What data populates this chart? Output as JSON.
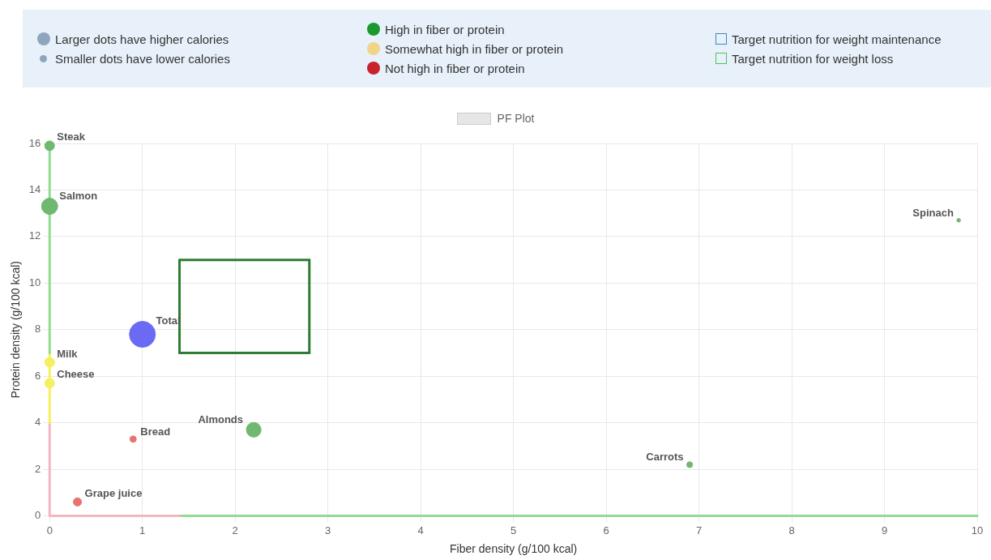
{
  "chart_data": {
    "type": "bubble",
    "xlabel": "Fiber density (g/100 kcal)",
    "ylabel": "Protein density (g/100 kcal)",
    "xlim": [
      0,
      10
    ],
    "ylim": [
      0,
      16
    ],
    "xticks": [
      0,
      1,
      2,
      3,
      4,
      5,
      6,
      7,
      8,
      9,
      10
    ],
    "yticks": [
      0,
      2,
      4,
      6,
      8,
      10,
      12,
      14,
      16
    ],
    "grid": true,
    "legend": "top",
    "series": [
      {
        "name": "PF Plot",
        "color": "#e6e6e6",
        "x": [
          0,
          0,
          0,
          0,
          1,
          0.9,
          0.3,
          2.2,
          6.9,
          9.8
        ],
        "values": [
          15.9,
          13.3,
          6.6,
          5.7,
          7.8,
          3.3,
          0.6,
          3.7,
          2.2,
          12.7
        ],
        "sizes": [
          0.14,
          0.39,
          0.14,
          0.14,
          1,
          0.06,
          0.1,
          0.32,
          0.05,
          0.02
        ],
        "colors": [
          "#6fb86f",
          "#6fb86f",
          "#f5f060",
          "#f5f060",
          "#6a6af5",
          "#e87373",
          "#e87373",
          "#6fb86f",
          "#6fb86f",
          "#6fb86f"
        ]
      },
      {
        "type": "line",
        "color": "#90dc90",
        "x": [
          0,
          0
        ],
        "values": [
          7,
          16
        ]
      },
      {
        "type": "line",
        "color": "#f5f05a",
        "x": [
          0,
          0
        ],
        "values": [
          4,
          7
        ]
      },
      {
        "type": "line",
        "color": "#f4b6c2",
        "x": [
          0,
          0
        ],
        "values": [
          0,
          4
        ]
      },
      {
        "type": "line",
        "color": "#f4b6c2",
        "x": [
          0,
          1.4
        ],
        "values": [
          0,
          0
        ]
      },
      {
        "type": "line",
        "color": "#90dc90",
        "x": [
          1.4,
          10
        ],
        "values": [
          0,
          0
        ]
      },
      {
        "type": "line",
        "color": "#2e7d32",
        "x": [
          1.4,
          2.8
        ],
        "values": [
          7,
          7
        ]
      },
      {
        "type": "line",
        "color": "#2e7d32",
        "x": [
          2.8,
          2.8
        ],
        "values": [
          7,
          11
        ]
      },
      {
        "type": "line",
        "color": "#2e7d32",
        "x": [
          1.4,
          2.8
        ],
        "values": [
          11,
          11
        ]
      },
      {
        "type": "line",
        "color": "#2e7d32",
        "x": [
          1.4,
          1.4
        ],
        "values": [
          7,
          11
        ]
      }
    ],
    "annotations": [
      "Larger dots have higher calories",
      "Smaller dots have lower calories",
      "High in fiber or protein",
      "Somewhat high in fiber or protein",
      "Not high in fiber or protein",
      "Target nutrition for weight maintenance",
      "Target nutrition for weight loss",
      {
        "text": "Steak",
        "x": 0,
        "y": 15.9
      },
      {
        "text": "Salmon",
        "x": 0,
        "y": 13.3
      },
      {
        "text": "Milk",
        "x": 0,
        "y": 6.6
      },
      {
        "text": "Cheese",
        "x": 0,
        "y": 5.7
      },
      {
        "text": "Total",
        "x": 1,
        "y": 7.8
      },
      {
        "text": "Bread",
        "x": 0.9,
        "y": 3.3
      },
      {
        "text": "Grape juice",
        "x": 0.3,
        "y": 0.6
      },
      {
        "text": "Almonds",
        "x": 2.2,
        "y": 3.7
      },
      {
        "text": "Carrots",
        "x": 6.9,
        "y": 2.2
      },
      {
        "text": "Spinach",
        "x": 9.8,
        "y": 12.7
      }
    ]
  }
}
